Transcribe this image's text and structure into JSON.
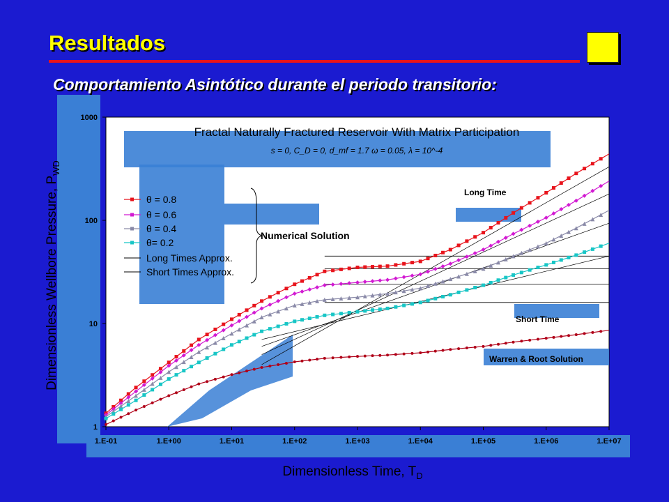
{
  "slide": {
    "title": "Resultados",
    "subtitle": "Comportamiento Asintótico durante el periodo transitorio:"
  },
  "colors": {
    "background": "#1b1bd0",
    "title": "#ffff00",
    "rule": "#e8141c",
    "plot_bg": "#ffffff",
    "theta_08": "#e8141c",
    "theta_06": "#d21ad2",
    "theta_04": "#8a8aa8",
    "theta_02": "#18c6c6",
    "curve_line": "#000000"
  },
  "chart_data": {
    "type": "line",
    "title": "Fractal Naturally Fractured Reservoir With Matrix Participation",
    "subtitle": "s = 0, C_D = 0, d_mf = 1.7 ω = 0.05, λ = 10^-4",
    "xlabel": "Dimensionless Time, T",
    "xlabel_sub": "D",
    "ylabel": "Dimensionless Wellbore Pressure, P",
    "ylabel_sub": "WD",
    "x_scale": "log",
    "y_scale": "log",
    "xlim": [
      0.1,
      10000000
    ],
    "ylim": [
      1,
      1000
    ],
    "x_ticks": [
      0.1,
      1,
      10,
      100,
      1000,
      10000,
      100000,
      1000000,
      10000000
    ],
    "x_tick_labels": [
      "1.E-01",
      "1.E+00",
      "1.E+01",
      "1.E+02",
      "1.E+03",
      "1.E+04",
      "1.E+05",
      "1.E+06",
      "1.E+07"
    ],
    "y_ticks": [
      1,
      10,
      100,
      1000
    ],
    "y_tick_labels": [
      "1",
      "10",
      "100",
      "1000"
    ],
    "legend_position": "upper-left",
    "series": [
      {
        "name": "θ = 0.8",
        "marker": "square",
        "color": "#e8141c",
        "x": [
          0.1,
          0.3,
          1,
          3,
          10,
          30,
          100,
          300,
          1000,
          3000,
          10000,
          30000,
          100000,
          300000,
          1000000,
          3000000,
          10000000
        ],
        "y": [
          1.35,
          2.4,
          4.2,
          7.0,
          11.0,
          16.5,
          24.0,
          32.0,
          35.0,
          36.0,
          40.0,
          52.0,
          76.0,
          118.0,
          185.0,
          285.0,
          440.0
        ]
      },
      {
        "name": "θ = 0.6",
        "marker": "diamond",
        "color": "#d21ad2",
        "x": [
          0.1,
          0.3,
          1,
          3,
          10,
          30,
          100,
          300,
          1000,
          3000,
          10000,
          30000,
          100000,
          300000,
          1000000,
          3000000,
          10000000
        ],
        "y": [
          1.3,
          2.2,
          3.9,
          6.2,
          9.6,
          14.0,
          19.5,
          23.5,
          25.0,
          26.5,
          30.0,
          38.0,
          52.0,
          74.0,
          106.0,
          155.0,
          240.0
        ]
      },
      {
        "name": "θ = 0.4",
        "marker": "triangle",
        "color": "#8a8aa8",
        "x": [
          0.1,
          0.3,
          1,
          3,
          10,
          30,
          100,
          300,
          1000,
          3000,
          10000,
          30000,
          100000,
          300000,
          1000000,
          3000000,
          10000000
        ],
        "y": [
          1.25,
          2.0,
          3.4,
          5.3,
          8.0,
          11.5,
          15.0,
          17.0,
          18.0,
          19.5,
          22.0,
          27.0,
          34.0,
          45.0,
          60.0,
          84.0,
          125.0
        ]
      },
      {
        "name": "θ= 0.2",
        "marker": "square",
        "color": "#18c6c6",
        "x": [
          0.1,
          0.3,
          1,
          3,
          10,
          30,
          100,
          300,
          1000,
          3000,
          10000,
          30000,
          100000,
          300000,
          1000000,
          3000000,
          10000000
        ],
        "y": [
          1.2,
          1.8,
          2.9,
          4.2,
          6.2,
          8.4,
          10.5,
          12.0,
          13.0,
          14.0,
          16.0,
          19.0,
          23.5,
          29.5,
          37.0,
          46.0,
          60.0
        ]
      },
      {
        "name": "Warren & Root Solution",
        "marker": "circle",
        "color": "#b00018",
        "x": [
          0.1,
          0.3,
          1,
          3,
          10,
          30,
          100,
          300,
          1000,
          3000,
          10000,
          30000,
          100000,
          300000,
          1000000,
          3000000,
          10000000
        ],
        "y": [
          1.05,
          1.45,
          2.0,
          2.6,
          3.2,
          3.75,
          4.25,
          4.6,
          4.8,
          4.95,
          5.2,
          5.6,
          6.0,
          6.6,
          7.2,
          7.8,
          8.6
        ]
      }
    ],
    "legend_lines": [
      {
        "name": "Long Times Approx."
      },
      {
        "name": "Short Times Approx."
      }
    ],
    "long_time_levels": [
      45,
      34,
      24,
      16
    ],
    "annotations": {
      "numerical_solution": "Numerical Solution",
      "long_time": "Long Time",
      "short_time": "Short Time",
      "warren_root": "Warren & Root Solution"
    }
  }
}
